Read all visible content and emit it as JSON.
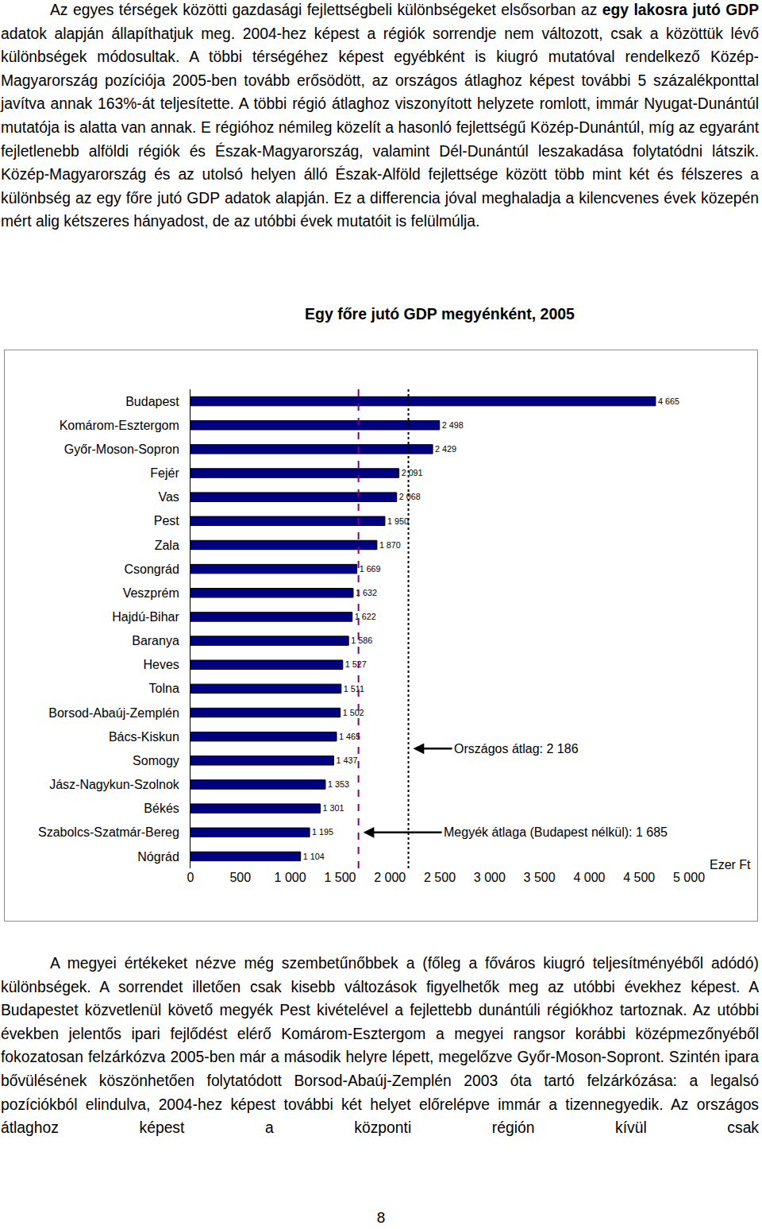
{
  "text_before": [
    "Az egyes térségek közötti gazdasági fejlettségbeli különbségeket elsősorban az ",
    {
      "strong": "egy lakosra jutó GDP"
    },
    " adatok alapján állapíthatjuk meg. 2004-hez képest a régiók sorrendje nem változott, csak a közöttük lévő különbségek módosultak. A többi térségéhez képest egyébként is kiugró mutatóval rendelkező Közép-Magyarország pozíciója 2005-ben tovább erősödött, az országos átlaghoz képest további 5 százalékponttal javítva annak 163%-át teljesítette. A többi régió átlaghoz viszonyított helyzete romlott, immár Nyugat-Dunántúl mutatója is alatta van annak. E régióhoz némileg közelít a hasonló fejlettségű Közép-Dunántúl, míg az egyaránt fejletlenebb alföldi régiók és Észak-Magyarország, valamint Dél-Dunántúl leszakadása folytatódni látszik. Közép-Magyarország és az utolsó helyen álló Észak-Alföld fejlettsége között több mint két és félszeres a különbség az egy főre jutó GDP adatok alapján. Ez a differencia jóval meghaladja a kilencvenes évek közepén mért alig kétszeres hányadost, de az utóbbi évek mutatóit is felülmúlja."
  ],
  "chart_data": {
    "type": "bar",
    "orientation": "horizontal",
    "title": "Egy főre jutó GDP megyénként, 2005",
    "xlabel": "Ezer Ft",
    "categories": [
      "Budapest",
      "Komárom-Esztergom",
      "Győr-Moson-Sopron",
      "Fejér",
      "Vas",
      "Pest",
      "Zala",
      "Csongrád",
      "Veszprém",
      "Hajdú-Bihar",
      "Baranya",
      "Heves",
      "Tolna",
      "Borsod-Abaúj-Zemplén",
      "Bács-Kiskun",
      "Somogy",
      "Jász-Nagykun-Szolnok",
      "Békés",
      "Szabolcs-Szatmár-Bereg",
      "Nógrád"
    ],
    "values": [
      4665,
      2498,
      2429,
      2091,
      2068,
      1950,
      1870,
      1669,
      1632,
      1622,
      1586,
      1527,
      1511,
      1502,
      1465,
      1437,
      1353,
      1301,
      1195,
      1104
    ],
    "value_labels": [
      "4 665",
      "2 498",
      "2 429",
      "2 091",
      "2 068",
      "1 950",
      "1 870",
      "1 669",
      "1 632",
      "1 622",
      "1 586",
      "1 527",
      "1 511",
      "1 502",
      "1 465",
      "1 437",
      "1 353",
      "1 301",
      "1 195",
      "1 104"
    ],
    "data_labels": true,
    "color": "#000080",
    "grid": false,
    "xlim": [
      0,
      5000
    ],
    "xticks": [
      0,
      500,
      {
        "value": 1000,
        "label": "1 000"
      },
      {
        "value": 1500,
        "label": "1 500"
      },
      {
        "value": 2000,
        "label": "2 000"
      },
      {
        "value": 2500,
        "label": "2 500"
      },
      {
        "value": 3000,
        "label": "3 000"
      },
      {
        "value": 3500,
        "label": "3 500"
      },
      {
        "value": 4000,
        "label": "4 000"
      },
      {
        "value": 4500,
        "label": "4 500"
      },
      {
        "value": 5000,
        "label": "5 000"
      }
    ],
    "annotations": [
      {
        "text": "Országos átlag: 2 186",
        "value": 2186,
        "color": "#000000",
        "line_style": "dot"
      },
      {
        "text": "Megyék átlaga (Budapest nélkül): 1 685",
        "value": 1685,
        "color": "#800080",
        "line_style": "dash"
      }
    ]
  },
  "text_after": [
    "A megyei értékeket nézve még szembetűnőbbek a (főleg a főváros kiugró teljesítményéből adódó) különbségek. A sorrendet illetően csak kisebb változások figyelhetők meg az utóbbi évekhez képest. A Budapestet közvetlenül követő megyék Pest kivételével a fejlettebb dunántúli régiókhoz tartoznak. Az utóbbi években jelentős ipari fejlődést elérő Komárom-Esztergom a megyei rangsor korábbi középmezőnyéből fokozatosan felzárkózva 2005-ben már a második helyre lépett, megelőzve Győr-Moson-Sopront. Szintén ipara bővülésének köszönhetően folytatódott Borsod-Abaúj-Zemplén 2003 óta tartó felzárkózása: a legalsó pozíciókból elindulva, 2004-hez képest további két helyet előrelépve immár a tizennegyedik. Az országos átlaghoz képest a központi régión kívül csak"
  ],
  "page_number": "8"
}
